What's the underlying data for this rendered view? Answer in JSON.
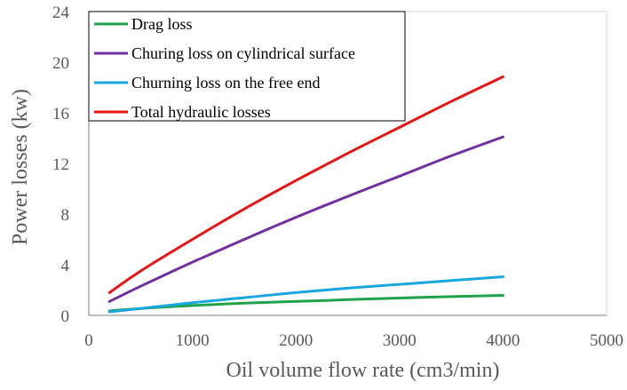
{
  "chart_data": {
    "type": "line",
    "title": "",
    "xlabel": "Oil volume flow rate (cm3/min)",
    "ylabel": "Power losses (kw)",
    "xlim": [
      0,
      5000
    ],
    "ylim": [
      0,
      24
    ],
    "x_ticks": [
      "0",
      "1000",
      "2000",
      "3000",
      "4000",
      "5000"
    ],
    "y_ticks": [
      "0",
      "4",
      "8",
      "12",
      "16",
      "20",
      "24"
    ],
    "grid": false,
    "legend_position": "top-left",
    "series": [
      {
        "name": "Drag loss",
        "color": "#1fa34a",
        "x": [
          200,
          500,
          1000,
          1500,
          2000,
          2500,
          3000,
          3500,
          4000
        ],
        "y": [
          0.35,
          0.55,
          0.78,
          0.96,
          1.1,
          1.24,
          1.37,
          1.48,
          1.58
        ]
      },
      {
        "name": "Churing loss on cylindrical surface",
        "color": "#7030a0",
        "x": [
          200,
          500,
          1000,
          1500,
          2000,
          2500,
          3000,
          3500,
          4000
        ],
        "y": [
          1.1,
          2.3,
          4.2,
          6.0,
          7.75,
          9.4,
          11.0,
          12.6,
          14.1
        ]
      },
      {
        "name": "Churning loss on the free end",
        "color": "#1aa7e0",
        "x": [
          200,
          500,
          1000,
          1500,
          2000,
          2500,
          3000,
          3500,
          4000
        ],
        "y": [
          0.28,
          0.55,
          1.0,
          1.4,
          1.8,
          2.15,
          2.45,
          2.75,
          3.05
        ]
      },
      {
        "name": "Total hydraulic losses",
        "color": "#e81515",
        "x": [
          200,
          500,
          1000,
          1500,
          2000,
          2500,
          3000,
          3500,
          4000
        ],
        "y": [
          1.8,
          3.5,
          6.0,
          8.4,
          10.65,
          12.8,
          14.85,
          16.9,
          18.85
        ]
      }
    ]
  }
}
